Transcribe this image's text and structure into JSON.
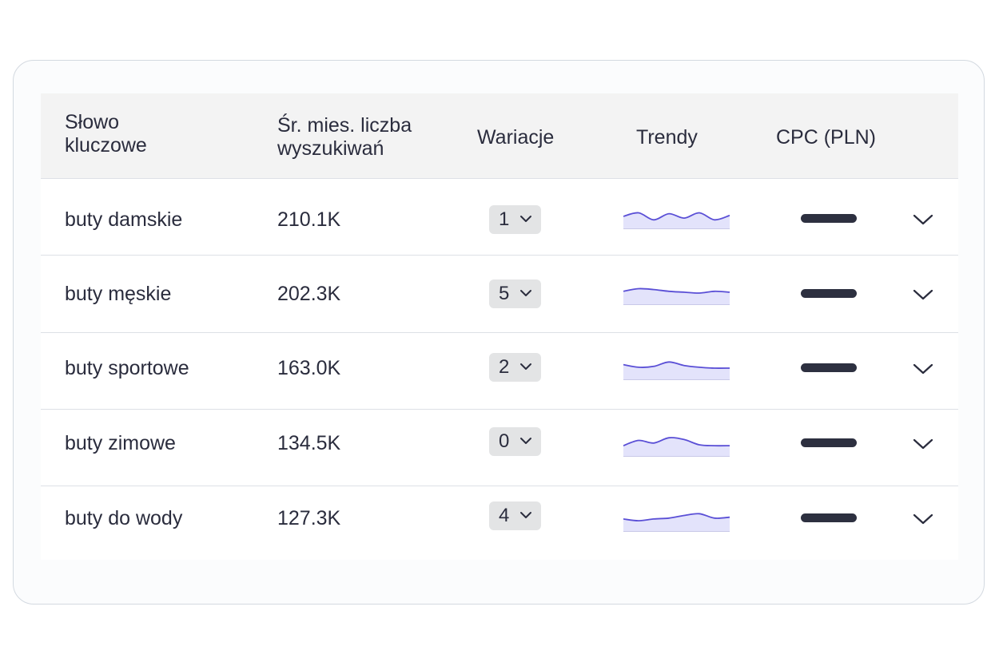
{
  "table": {
    "headers": {
      "keyword_line1": "Słowo",
      "keyword_line2": "kluczowe",
      "searches_line1": "Śr. mies. liczba",
      "searches_line2": "wyszukiwań",
      "variations": "Wariacje",
      "trends": "Trendy",
      "cpc": "CPC (PLN)"
    },
    "rows": [
      {
        "keyword": "buty damskie",
        "searches": "210.1K",
        "variations": "1",
        "trend": [
          0.55,
          0.75,
          0.35,
          0.7,
          0.45,
          0.75,
          0.35,
          0.6
        ]
      },
      {
        "keyword": "buty męskie",
        "searches": "202.3K",
        "variations": "5",
        "trend": [
          0.6,
          0.75,
          0.7,
          0.6,
          0.55,
          0.5,
          0.6,
          0.55
        ]
      },
      {
        "keyword": "buty sportowe",
        "searches": "163.0K",
        "variations": "2",
        "trend": [
          0.7,
          0.55,
          0.6,
          0.85,
          0.65,
          0.55,
          0.5,
          0.5
        ]
      },
      {
        "keyword": "buty zimowe",
        "searches": "134.5K",
        "variations": "0",
        "trend": [
          0.45,
          0.75,
          0.6,
          0.9,
          0.8,
          0.5,
          0.45,
          0.45
        ]
      },
      {
        "keyword": "buty do wody",
        "searches": "127.3K",
        "variations": "4",
        "trend": [
          0.55,
          0.45,
          0.55,
          0.6,
          0.75,
          0.85,
          0.6,
          0.65
        ]
      }
    ]
  },
  "colors": {
    "trend_line": "#5a4fd6",
    "trend_fill": "#e3e3fb",
    "cpc_bar": "#2d3040"
  },
  "icons": {
    "pill": "chevron-down-icon",
    "row_expand": "chevron-down-icon"
  }
}
